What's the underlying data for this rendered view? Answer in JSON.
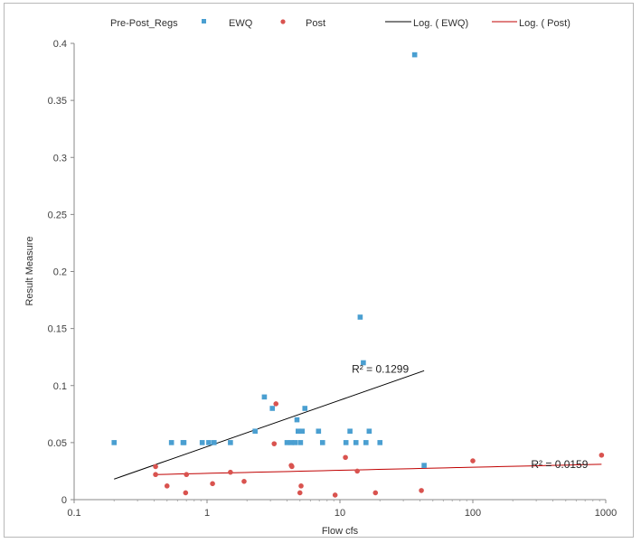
{
  "chart_data": {
    "type": "scatter",
    "xscale": "log",
    "xlim": [
      0.1,
      1000
    ],
    "ylim": [
      0,
      0.4
    ],
    "xlabel": "Flow cfs",
    "ylabel": "Result Measure",
    "x_ticks": [
      "0.1",
      "1",
      "10",
      "100",
      "1000"
    ],
    "y_ticks": [
      "0",
      "0.05",
      "0.1",
      "0.15",
      "0.2",
      "0.25",
      "0.3",
      "0.35",
      "0.4"
    ],
    "grid": false,
    "legend_position": "top",
    "legend_title": "Pre-Post_Regs",
    "series": [
      {
        "name": "EWQ",
        "marker": "square",
        "color": "#4a9fd1",
        "points": [
          [
            0.2,
            0.05
          ],
          [
            0.54,
            0.05
          ],
          [
            0.66,
            0.05
          ],
          [
            0.67,
            0.05
          ],
          [
            0.92,
            0.05
          ],
          [
            1.03,
            0.05
          ],
          [
            1.13,
            0.05
          ],
          [
            1.5,
            0.05
          ],
          [
            2.3,
            0.06
          ],
          [
            2.7,
            0.09
          ],
          [
            3.1,
            0.08
          ],
          [
            4.0,
            0.05
          ],
          [
            4.3,
            0.05
          ],
          [
            4.6,
            0.05
          ],
          [
            4.75,
            0.07
          ],
          [
            4.85,
            0.06
          ],
          [
            5.05,
            0.05
          ],
          [
            5.2,
            0.06
          ],
          [
            5.45,
            0.08
          ],
          [
            6.9,
            0.06
          ],
          [
            7.4,
            0.05
          ],
          [
            11.1,
            0.05
          ],
          [
            11.9,
            0.06
          ],
          [
            13.2,
            0.05
          ],
          [
            14.2,
            0.16
          ],
          [
            15.0,
            0.12
          ],
          [
            15.7,
            0.05
          ],
          [
            16.6,
            0.06
          ],
          [
            20.0,
            0.05
          ],
          [
            36.5,
            0.39
          ],
          [
            43.0,
            0.03
          ]
        ]
      },
      {
        "name": "Post",
        "marker": "circle",
        "color": "#d9534f",
        "points": [
          [
            0.41,
            0.029
          ],
          [
            0.41,
            0.022
          ],
          [
            0.5,
            0.012
          ],
          [
            0.69,
            0.006
          ],
          [
            0.7,
            0.022
          ],
          [
            1.1,
            0.014
          ],
          [
            1.5,
            0.024
          ],
          [
            1.9,
            0.016
          ],
          [
            3.2,
            0.049
          ],
          [
            3.3,
            0.084
          ],
          [
            4.3,
            0.03
          ],
          [
            4.35,
            0.029
          ],
          [
            5.0,
            0.006
          ],
          [
            5.1,
            0.012
          ],
          [
            9.2,
            0.004
          ],
          [
            11.0,
            0.037
          ],
          [
            13.5,
            0.025
          ],
          [
            18.5,
            0.006
          ],
          [
            41.0,
            0.008
          ],
          [
            100,
            0.034
          ],
          [
            930,
            0.039
          ]
        ]
      }
    ],
    "trendlines": [
      {
        "name": "Log. ( EWQ)",
        "series": "EWQ",
        "color": "#000000",
        "x_range": [
          0.2,
          43
        ],
        "y_at_start": 0.018,
        "y_at_end": 0.113,
        "r2_label": "R² = 0.1299"
      },
      {
        "name": "Log. ( Post)",
        "series": "Post",
        "color": "#c00000",
        "x_range": [
          0.41,
          930
        ],
        "y_at_start": 0.022,
        "y_at_end": 0.031,
        "r2_label": "R² = 0.0159"
      }
    ]
  }
}
